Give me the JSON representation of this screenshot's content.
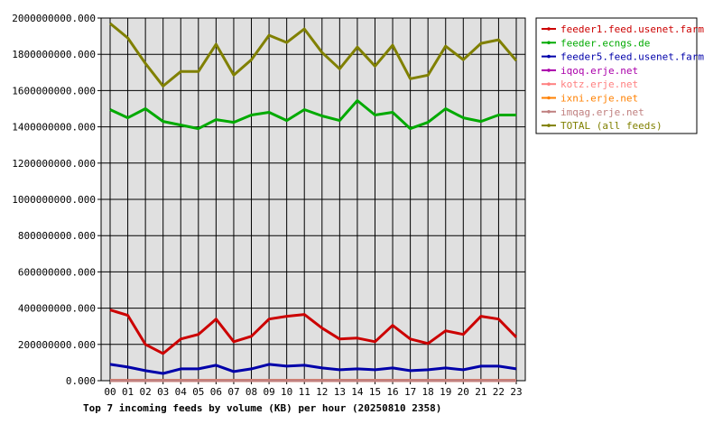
{
  "chart_data": {
    "type": "line",
    "title": "Top 7 incoming feeds by volume (KB) per hour (20250810 2358)",
    "xlabel": "",
    "ylabel": "",
    "ylim": [
      0,
      2000000000
    ],
    "y_ticks": [
      0,
      200000000,
      400000000,
      600000000,
      800000000,
      1000000000,
      1200000000,
      1400000000,
      1600000000,
      1800000000,
      2000000000
    ],
    "y_tick_labels": [
      "0.000",
      "200000000.000",
      "400000000.000",
      "600000000.000",
      "800000000.000",
      "1000000000.000",
      "1200000000.000",
      "1400000000.000",
      "1600000000.000",
      "1800000000.000",
      "2000000000.000"
    ],
    "categories": [
      "00",
      "01",
      "02",
      "03",
      "04",
      "05",
      "06",
      "07",
      "08",
      "09",
      "10",
      "11",
      "12",
      "13",
      "14",
      "15",
      "16",
      "17",
      "18",
      "19",
      "20",
      "21",
      "22",
      "23"
    ],
    "grid": true,
    "legend_position": "right",
    "series": [
      {
        "name": "feeder1.feed.usenet.farm",
        "color": "#cc0000",
        "values": [
          390000000,
          360000000,
          200000000,
          150000000,
          230000000,
          255000000,
          340000000,
          215000000,
          245000000,
          340000000,
          355000000,
          365000000,
          290000000,
          230000000,
          235000000,
          215000000,
          305000000,
          230000000,
          205000000,
          275000000,
          255000000,
          355000000,
          340000000,
          240000000
        ]
      },
      {
        "name": "feeder.ecngs.de",
        "color": "#00aa00",
        "values": [
          1495000000,
          1450000000,
          1500000000,
          1430000000,
          1410000000,
          1390000000,
          1440000000,
          1425000000,
          1465000000,
          1480000000,
          1435000000,
          1495000000,
          1460000000,
          1435000000,
          1545000000,
          1465000000,
          1480000000,
          1390000000,
          1425000000,
          1500000000,
          1450000000,
          1430000000,
          1465000000,
          1465000000
        ]
      },
      {
        "name": "feeder5.feed.usenet.farm",
        "color": "#0000aa",
        "values": [
          90000000,
          75000000,
          55000000,
          40000000,
          65000000,
          65000000,
          85000000,
          50000000,
          65000000,
          90000000,
          80000000,
          85000000,
          70000000,
          60000000,
          65000000,
          60000000,
          70000000,
          55000000,
          60000000,
          70000000,
          60000000,
          80000000,
          80000000,
          65000000
        ]
      },
      {
        "name": "iqoq.erje.net",
        "color": "#aa00aa",
        "values": [
          1500000,
          1500000,
          1500000,
          1500000,
          1500000,
          1500000,
          1500000,
          1500000,
          1500000,
          1500000,
          1500000,
          1500000,
          1500000,
          1500000,
          1500000,
          1500000,
          1500000,
          1500000,
          1500000,
          1500000,
          1500000,
          1500000,
          1500000,
          1500000
        ]
      },
      {
        "name": "kotz.erje.net",
        "color": "#ff8080",
        "values": [
          1000000,
          1000000,
          1000000,
          1000000,
          1000000,
          1000000,
          1000000,
          1000000,
          1000000,
          1000000,
          1000000,
          1000000,
          1000000,
          1000000,
          1000000,
          1000000,
          1000000,
          1000000,
          1000000,
          1000000,
          1000000,
          1000000,
          1000000,
          1000000
        ]
      },
      {
        "name": "ixni.erje.net",
        "color": "#ff8000",
        "values": [
          800000,
          800000,
          800000,
          800000,
          800000,
          800000,
          800000,
          800000,
          800000,
          800000,
          800000,
          800000,
          800000,
          800000,
          800000,
          800000,
          800000,
          800000,
          800000,
          800000,
          800000,
          800000,
          800000,
          800000
        ]
      },
      {
        "name": "imqag.erje.net",
        "color": "#c08080",
        "values": [
          500000,
          500000,
          500000,
          500000,
          500000,
          500000,
          500000,
          500000,
          500000,
          500000,
          500000,
          500000,
          500000,
          500000,
          500000,
          500000,
          500000,
          500000,
          500000,
          500000,
          500000,
          500000,
          500000,
          500000
        ]
      },
      {
        "name": "TOTAL (all feeds)",
        "color": "#808000",
        "values": [
          1970000000,
          1890000000,
          1750000000,
          1625000000,
          1705000000,
          1705000000,
          1855000000,
          1685000000,
          1770000000,
          1905000000,
          1865000000,
          1940000000,
          1810000000,
          1720000000,
          1840000000,
          1735000000,
          1850000000,
          1665000000,
          1685000000,
          1845000000,
          1770000000,
          1860000000,
          1880000000,
          1765000000
        ]
      }
    ]
  }
}
